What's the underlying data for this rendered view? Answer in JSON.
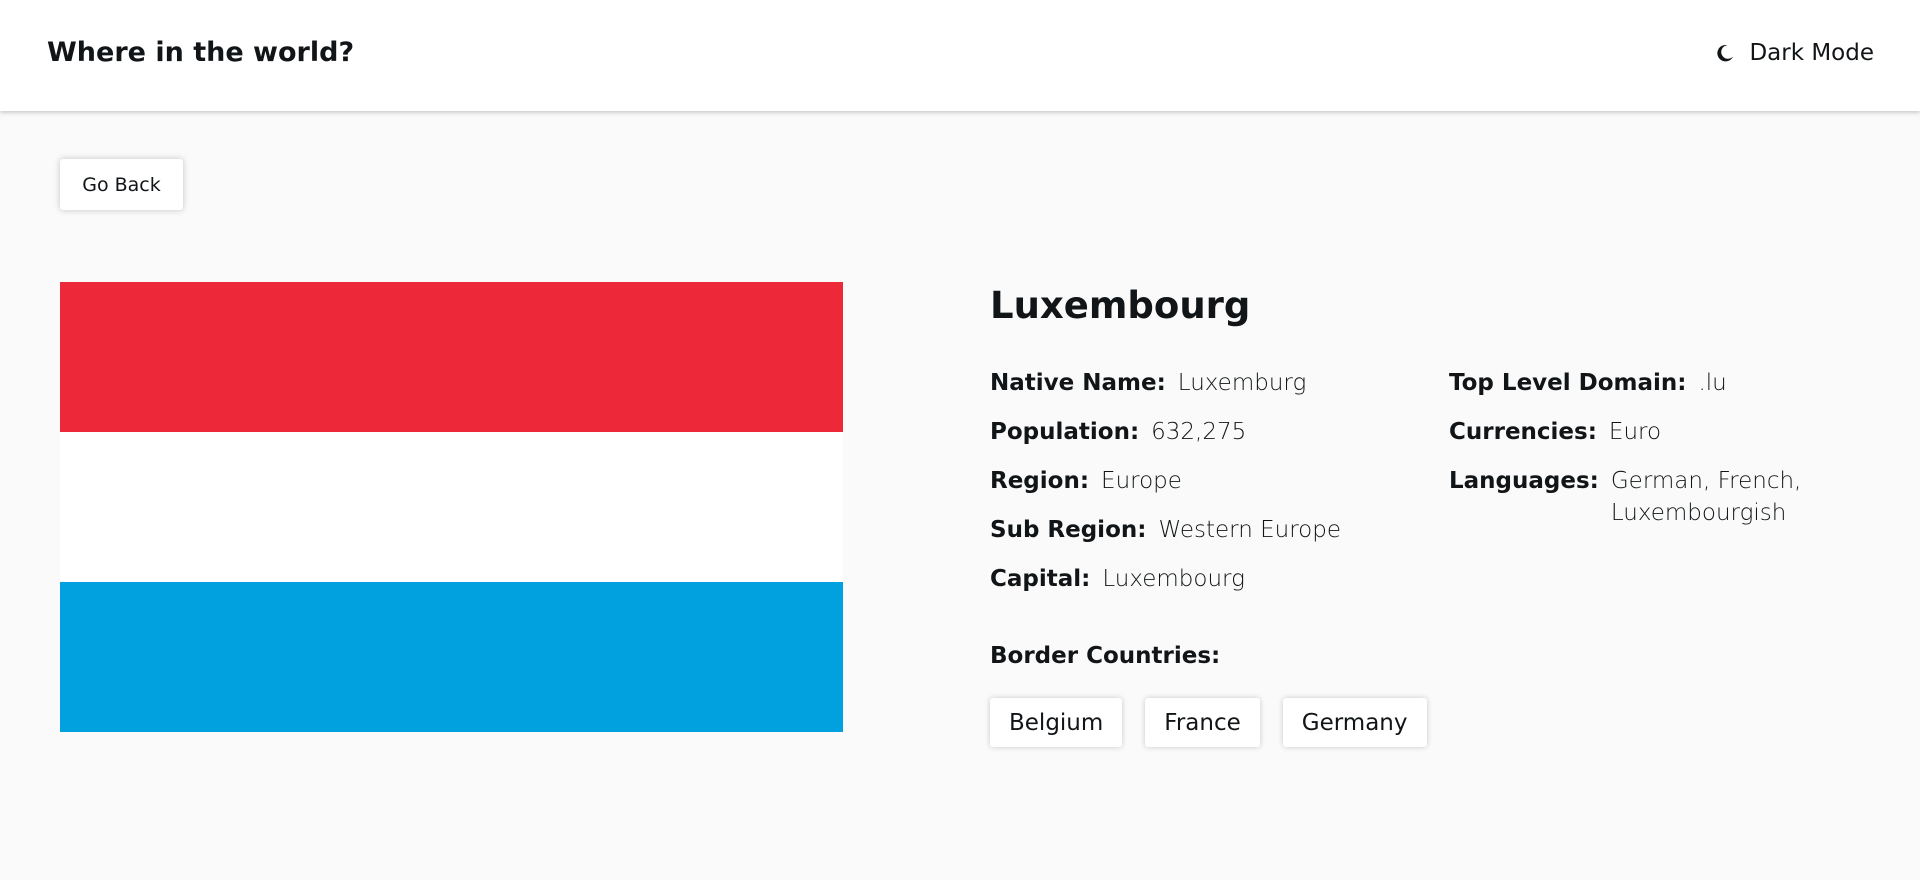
{
  "header": {
    "title": "Where in the world?",
    "theme_toggle": {
      "icon": "moon-icon",
      "label": "Dark Mode"
    }
  },
  "back_button": {
    "label": "Go Back"
  },
  "flag": {
    "icon": "flag-luxembourg",
    "colors": [
      "#ed2939",
      "#ffffff",
      "#00a1de"
    ]
  },
  "country": {
    "name": "Luxembourg",
    "left_details": [
      {
        "label": "Native Name:",
        "value": "Luxemburg"
      },
      {
        "label": "Population:",
        "value": "632,275"
      },
      {
        "label": "Region:",
        "value": "Europe"
      },
      {
        "label": "Sub Region:",
        "value": "Western Europe"
      },
      {
        "label": "Capital:",
        "value": "Luxembourg"
      }
    ],
    "right_details": [
      {
        "label": "Top Level Domain:",
        "value": ".lu"
      },
      {
        "label": "Currencies:",
        "value": "Euro"
      },
      {
        "label": "Languages:",
        "value": "German, French, Luxembourgish"
      }
    ],
    "border_label": "Border Countries:",
    "borders": [
      "Belgium",
      "France",
      "Germany"
    ]
  },
  "colors": {
    "background": "#fafafa",
    "header": "#ffffff",
    "text": "#111517"
  }
}
